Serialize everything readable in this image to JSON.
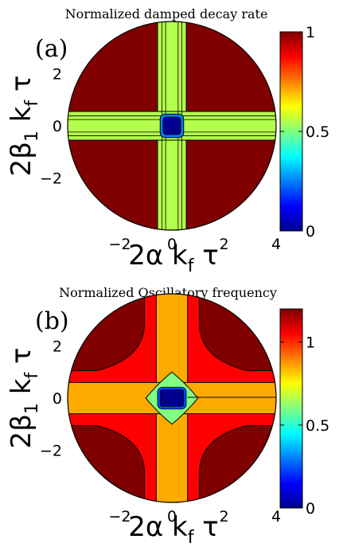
{
  "chart_data": [
    {
      "type": "heatmap",
      "panel_label": "(a)",
      "title": "Normalized damped decay rate",
      "xlabel": "2α k_f τ",
      "ylabel": "2β_1 k_f τ",
      "xlim": [
        -4,
        4
      ],
      "ylim": [
        -4,
        4
      ],
      "xticks": [
        -2,
        0,
        2,
        4
      ],
      "yticks": [
        -2,
        0,
        2
      ],
      "domain": "disk of radius 4",
      "colorbar": {
        "min": 0,
        "max": 1,
        "ticks": [
          0,
          0.5,
          1
        ]
      },
      "regions": [
        {
          "name": "outer",
          "value": 1.0
        },
        {
          "name": "cross band |x|<0.55 or |y|<0.55",
          "value": 0.55
        },
        {
          "name": "center",
          "value": 0.0
        }
      ]
    },
    {
      "type": "heatmap",
      "panel_label": "(b)",
      "title": "Normalized Oscillatory frequency",
      "xlabel": "2α k_f τ",
      "ylabel": "2β_1 k_f τ",
      "xlim": [
        -4,
        4
      ],
      "ylim": [
        -4,
        4
      ],
      "xticks": [
        -2,
        0,
        2,
        4
      ],
      "yticks": [
        -2,
        0,
        2
      ],
      "domain": "disk of radius 4",
      "colorbar": {
        "min": 0,
        "max": 1.2,
        "ticks": [
          0,
          0.5,
          1
        ]
      },
      "regions": [
        {
          "name": "outer",
          "value": 1.2
        },
        {
          "name": "outer band",
          "value": 1.05
        },
        {
          "name": "cross band",
          "value": 0.85
        },
        {
          "name": "inner ring",
          "value": 0.6
        },
        {
          "name": "center",
          "value": 0.0
        }
      ]
    }
  ]
}
